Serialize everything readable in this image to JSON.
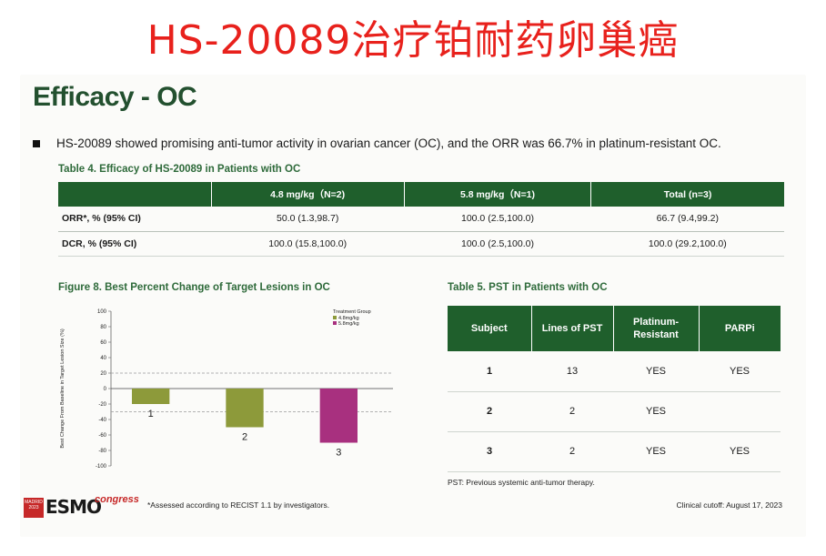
{
  "banner": {
    "title": "HS-20089治疗铂耐药卵巢癌"
  },
  "slide": {
    "title": "Efficacy - OC",
    "bullet": "HS-20089 showed promising anti-tumor activity in ovarian cancer (OC), and the ORR was 66.7% in platinum-resistant OC."
  },
  "table4": {
    "caption": "Table 4. Efficacy of HS-20089 in Patients with OC",
    "headers": [
      "",
      "4.8 mg/kg（N=2)",
      "5.8 mg/kg（N=1)",
      "Total (n=3)"
    ],
    "rows": [
      {
        "label": "ORR*, % (95% CI)",
        "values": [
          "50.0 (1.3,98.7)",
          "100.0 (2.5,100.0)",
          "66.7 (9.4,99.2)"
        ]
      },
      {
        "label": "DCR, % (95% CI)",
        "values": [
          "100.0 (15.8,100.0)",
          "100.0 (2.5,100.0)",
          "100.0 (29.2,100.0)"
        ]
      }
    ]
  },
  "figure8": {
    "caption": "Figure 8. Best Percent Change of Target Lesions in OC",
    "chart_data": {
      "type": "bar",
      "categories": [
        "1",
        "2",
        "3"
      ],
      "values": [
        -20,
        -50,
        -70
      ],
      "bar_colors": [
        "#8d9a3a",
        "#8d9a3a",
        "#a8307f"
      ],
      "ylabel": "Best Change From Baseline in Target Lesion Size (%)",
      "ylim": [
        -100,
        100
      ],
      "yticks": [
        100,
        80,
        60,
        40,
        20,
        0,
        -20,
        -40,
        -60,
        -80,
        -100
      ],
      "reference_lines": [
        20,
        -30
      ],
      "legend": {
        "title": "Treatment Group",
        "entries": [
          {
            "name": "4.8mg/kg",
            "color": "#8d9a3a"
          },
          {
            "name": "5.8mg/kg",
            "color": "#a8307f"
          }
        ]
      }
    }
  },
  "table5": {
    "caption": "Table 5. PST in Patients with OC",
    "headers": [
      "Subject",
      "Lines of PST",
      "Platinum-\nResistant",
      "PARPi"
    ],
    "rows": [
      [
        "1",
        "13",
        "YES",
        "YES"
      ],
      [
        "2",
        "2",
        "YES",
        ""
      ],
      [
        "3",
        "2",
        "YES",
        "YES"
      ]
    ],
    "note": "PST: Previous systemic anti-tumor therapy."
  },
  "footer": {
    "footnote": "*Assessed according to RECIST 1.1 by investigators.",
    "cutoff": "Clinical cutoff: August 17, 2023",
    "logo": {
      "city": "MADRID",
      "year": "2023",
      "brand": "ESMO",
      "suffix": "congress"
    }
  }
}
